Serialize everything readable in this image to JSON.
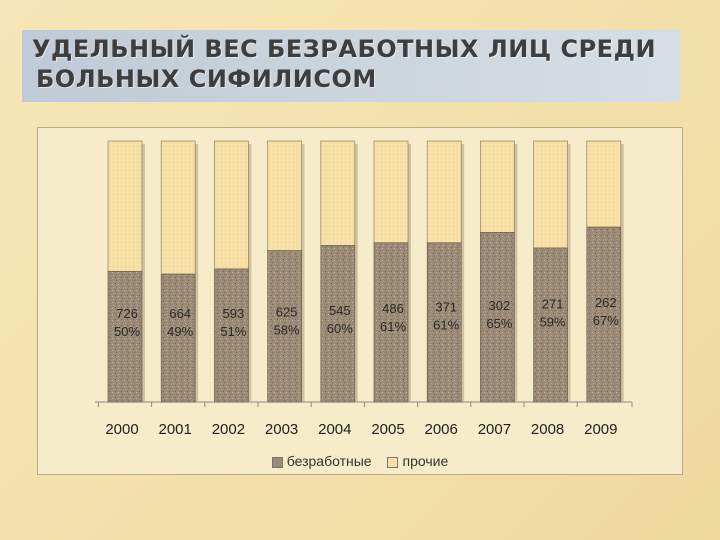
{
  "title": {
    "line1": "УДЕЛЬНЫЙ ВЕС БЕЗРАБОТНЫХ ЛИЦ СРЕДИ",
    "line2": "БОЛЬНЫХ СИФИЛИСОМ"
  },
  "colors": {
    "unemployed": "#9a8a76",
    "other": "#f7e0a6",
    "title_band": "#c8d3df"
  },
  "chart_data": {
    "type": "bar",
    "stacked": true,
    "percent_stacked": true,
    "categories": [
      "2000",
      "2001",
      "2002",
      "2003",
      "2004",
      "2005",
      "2006",
      "2007",
      "2008",
      "2009"
    ],
    "series": [
      {
        "name": "безработные",
        "values": [
          50,
          49,
          51,
          58,
          60,
          61,
          61,
          65,
          59,
          67
        ]
      },
      {
        "name": "прочие",
        "values": [
          50,
          51,
          49,
          42,
          40,
          39,
          39,
          35,
          41,
          33
        ]
      }
    ],
    "data_labels": [
      {
        "count": "726",
        "percent": "50%"
      },
      {
        "count": "664",
        "percent": "49%"
      },
      {
        "count": "593",
        "percent": "51%"
      },
      {
        "count": "625",
        "percent": "58%"
      },
      {
        "count": "545",
        "percent": "60%"
      },
      {
        "count": "486",
        "percent": "61%"
      },
      {
        "count": "371",
        "percent": "61%"
      },
      {
        "count": "302",
        "percent": "65%"
      },
      {
        "count": "271",
        "percent": "59%"
      },
      {
        "count": "262",
        "percent": "67%"
      }
    ],
    "ylim": [
      0,
      100
    ],
    "grid": false,
    "legend_position": "bottom"
  }
}
